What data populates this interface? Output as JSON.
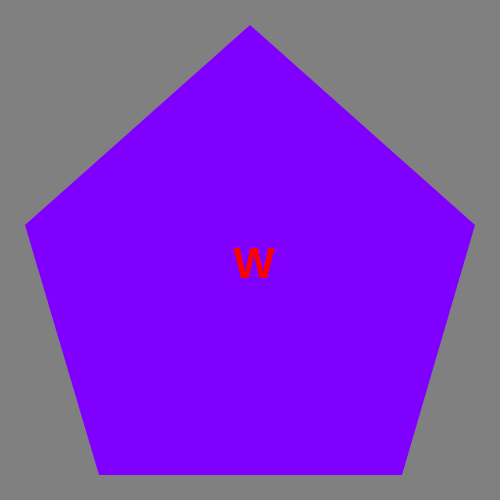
{
  "colors": {
    "background": "#808080",
    "shape_fill": "#7f00ff",
    "letter": "#ff0000"
  },
  "shape": {
    "kind": "pentagon",
    "letter": "W"
  }
}
